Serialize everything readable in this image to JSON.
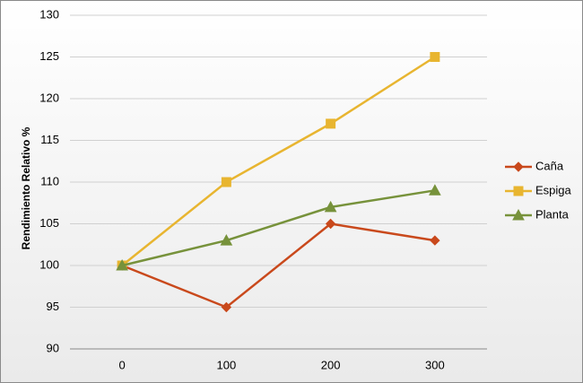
{
  "chart_data": {
    "type": "line",
    "y_label": "Rendimiento Relativo %",
    "categories": [
      "0",
      "100",
      "200",
      "300"
    ],
    "series": [
      {
        "name": "Caña",
        "color": "#c9491c",
        "marker": "diamond",
        "values": [
          100,
          95,
          105,
          103
        ]
      },
      {
        "name": "Espiga",
        "color": "#e8b530",
        "marker": "square",
        "values": [
          100,
          110,
          117,
          125
        ]
      },
      {
        "name": "Planta",
        "color": "#77923b",
        "marker": "triangle",
        "values": [
          100,
          103,
          107,
          109
        ]
      }
    ],
    "ylim": [
      90,
      130
    ],
    "yticks": [
      90,
      95,
      100,
      105,
      110,
      115,
      120,
      125,
      130
    ],
    "grid": true,
    "legend": "right"
  }
}
